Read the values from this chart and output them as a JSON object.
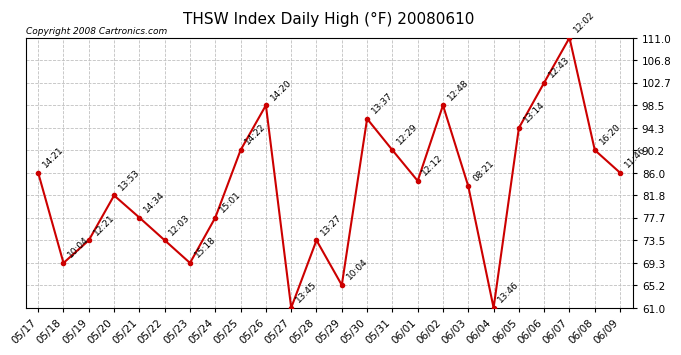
{
  "title": "THSW Index Daily High (°F) 20080610",
  "copyright": "Copyright 2008 Cartronics.com",
  "dates": [
    "05/17",
    "05/18",
    "05/19",
    "05/20",
    "05/21",
    "05/22",
    "05/23",
    "05/24",
    "05/25",
    "05/26",
    "05/27",
    "05/28",
    "05/29",
    "05/30",
    "05/31",
    "06/01",
    "06/02",
    "06/03",
    "06/04",
    "06/05",
    "06/06",
    "06/07",
    "06/08",
    "06/09"
  ],
  "values": [
    86.0,
    69.3,
    73.5,
    81.8,
    77.7,
    73.5,
    69.3,
    77.7,
    90.2,
    98.5,
    61.0,
    73.5,
    65.2,
    96.0,
    90.2,
    84.5,
    98.5,
    83.5,
    61.0,
    94.3,
    102.7,
    111.0,
    90.2,
    86.0
  ],
  "labels": [
    "14:21",
    "10:04",
    "12:21",
    "13:53",
    "14:34",
    "12:03",
    "15:18",
    "15:01",
    "14:22",
    "14:20",
    "13:45",
    "13:27",
    "10:04",
    "13:37",
    "12:29",
    "12:12",
    "12:48",
    "08:21",
    "13:46",
    "13:14",
    "12:43",
    "12:02",
    "16:20",
    "11:46"
  ],
  "yticks": [
    61.0,
    65.2,
    69.3,
    73.5,
    77.7,
    81.8,
    86.0,
    90.2,
    94.3,
    98.5,
    102.7,
    106.8,
    111.0
  ],
  "line_color": "#cc0000",
  "marker_color": "#cc0000",
  "bg_color": "#ffffff",
  "grid_color": "#c0c0c0",
  "title_fontsize": 11,
  "label_fontsize": 6.5,
  "axis_fontsize": 7.5,
  "copyright_fontsize": 6.5
}
